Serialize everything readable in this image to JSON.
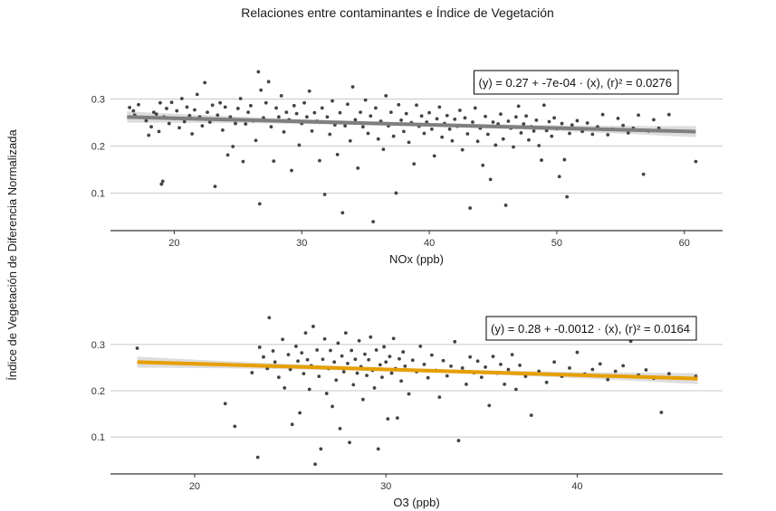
{
  "figure": {
    "title": "Relaciones entre contaminantes e Índice de Vegetación",
    "shared_ylabel": "Índice de Vegetación de Diferencia Normalizada"
  },
  "chart_data": [
    {
      "type": "scatter",
      "name": "nox-panel",
      "title": "",
      "xlabel": "NOx (ppb)",
      "ylabel": "Índice de Vegetación de Diferencia Normalizada",
      "xlim": [
        15,
        63
      ],
      "ylim": [
        0.02,
        0.38
      ],
      "x_ticks": [
        20,
        30,
        40,
        50,
        60
      ],
      "y_ticks": [
        0.1,
        0.2,
        0.3
      ],
      "x_tick_labels": [
        "20",
        "30",
        "40",
        "50",
        "60"
      ],
      "y_tick_labels": [
        "0.1",
        "0.2",
        "0.3"
      ],
      "grid": "horizontal",
      "equation": "(y) = 0.27 + -7e-04 · (x),  (r)² = 0.0276",
      "fit": {
        "intercept": 0.2733,
        "slope": -0.0007,
        "x_range": [
          16.3,
          60.9
        ],
        "color": "#7f7f7f",
        "band_color": "#d9d9d9"
      },
      "point_color": "#444444",
      "points": [
        [
          16.5,
          0.282
        ],
        [
          16.8,
          0.275
        ],
        [
          16.9,
          0.266
        ],
        [
          17.2,
          0.288
        ],
        [
          17.6,
          0.261
        ],
        [
          17.8,
          0.254
        ],
        [
          18.0,
          0.223
        ],
        [
          18.2,
          0.241
        ],
        [
          18.4,
          0.272
        ],
        [
          18.6,
          0.268
        ],
        [
          18.8,
          0.231
        ],
        [
          18.9,
          0.292
        ],
        [
          19.0,
          0.119
        ],
        [
          19.1,
          0.125
        ],
        [
          19.2,
          0.262
        ],
        [
          19.4,
          0.28
        ],
        [
          19.6,
          0.248
        ],
        [
          19.8,
          0.293
        ],
        [
          20.0,
          0.259
        ],
        [
          20.2,
          0.275
        ],
        [
          20.4,
          0.239
        ],
        [
          20.6,
          0.301
        ],
        [
          20.8,
          0.252
        ],
        [
          21.0,
          0.283
        ],
        [
          21.2,
          0.265
        ],
        [
          21.4,
          0.226
        ],
        [
          21.6,
          0.277
        ],
        [
          21.8,
          0.31
        ],
        [
          22.0,
          0.262
        ],
        [
          22.2,
          0.243
        ],
        [
          22.4,
          0.335
        ],
        [
          22.6,
          0.272
        ],
        [
          22.8,
          0.251
        ],
        [
          23.0,
          0.287
        ],
        [
          23.2,
          0.114
        ],
        [
          23.4,
          0.266
        ],
        [
          23.6,
          0.292
        ],
        [
          23.8,
          0.234
        ],
        [
          24.0,
          0.283
        ],
        [
          24.2,
          0.181
        ],
        [
          24.4,
          0.262
        ],
        [
          24.6,
          0.199
        ],
        [
          24.8,
          0.248
        ],
        [
          25.0,
          0.28
        ],
        [
          25.2,
          0.301
        ],
        [
          25.4,
          0.167
        ],
        [
          25.6,
          0.247
        ],
        [
          25.8,
          0.272
        ],
        [
          26.0,
          0.286
        ],
        [
          26.2,
          0.254
        ],
        [
          26.4,
          0.212
        ],
        [
          26.6,
          0.358
        ],
        [
          26.7,
          0.077
        ],
        [
          26.8,
          0.319
        ],
        [
          27.0,
          0.26
        ],
        [
          27.2,
          0.292
        ],
        [
          27.4,
          0.337
        ],
        [
          27.6,
          0.241
        ],
        [
          27.8,
          0.168
        ],
        [
          28.0,
          0.281
        ],
        [
          28.2,
          0.262
        ],
        [
          28.4,
          0.307
        ],
        [
          28.6,
          0.23
        ],
        [
          28.8,
          0.272
        ],
        [
          29.0,
          0.256
        ],
        [
          29.2,
          0.148
        ],
        [
          29.4,
          0.286
        ],
        [
          29.6,
          0.269
        ],
        [
          29.8,
          0.202
        ],
        [
          30.0,
          0.248
        ],
        [
          30.2,
          0.292
        ],
        [
          30.4,
          0.262
        ],
        [
          30.6,
          0.317
        ],
        [
          30.8,
          0.232
        ],
        [
          31.0,
          0.271
        ],
        [
          31.2,
          0.253
        ],
        [
          31.4,
          0.169
        ],
        [
          31.6,
          0.281
        ],
        [
          31.8,
          0.097
        ],
        [
          32.0,
          0.262
        ],
        [
          32.2,
          0.225
        ],
        [
          32.4,
          0.296
        ],
        [
          32.6,
          0.245
        ],
        [
          32.8,
          0.182
        ],
        [
          33.0,
          0.271
        ],
        [
          33.2,
          0.058
        ],
        [
          33.4,
          0.243
        ],
        [
          33.6,
          0.289
        ],
        [
          33.8,
          0.211
        ],
        [
          34.0,
          0.326
        ],
        [
          34.2,
          0.256
        ],
        [
          34.4,
          0.153
        ],
        [
          34.6,
          0.272
        ],
        [
          34.8,
          0.241
        ],
        [
          35.0,
          0.298
        ],
        [
          35.2,
          0.227
        ],
        [
          35.4,
          0.264
        ],
        [
          35.6,
          0.039
        ],
        [
          35.8,
          0.281
        ],
        [
          36.0,
          0.215
        ],
        [
          36.2,
          0.253
        ],
        [
          36.4,
          0.193
        ],
        [
          36.6,
          0.307
        ],
        [
          36.8,
          0.243
        ],
        [
          37.0,
          0.272
        ],
        [
          37.2,
          0.221
        ],
        [
          37.4,
          0.1
        ],
        [
          37.6,
          0.288
        ],
        [
          37.8,
          0.255
        ],
        [
          38.0,
          0.231
        ],
        [
          38.2,
          0.269
        ],
        [
          38.4,
          0.208
        ],
        [
          38.6,
          0.25
        ],
        [
          38.8,
          0.162
        ],
        [
          39.0,
          0.287
        ],
        [
          39.2,
          0.242
        ],
        [
          39.4,
          0.264
        ],
        [
          39.6,
          0.227
        ],
        [
          39.8,
          0.251
        ],
        [
          40.0,
          0.271
        ],
        [
          40.2,
          0.236
        ],
        [
          40.4,
          0.179
        ],
        [
          40.6,
          0.258
        ],
        [
          40.8,
          0.283
        ],
        [
          41.0,
          0.219
        ],
        [
          41.2,
          0.248
        ],
        [
          41.4,
          0.265
        ],
        [
          41.6,
          0.236
        ],
        [
          41.8,
          0.211
        ],
        [
          42.0,
          0.257
        ],
        [
          42.2,
          0.242
        ],
        [
          42.4,
          0.276
        ],
        [
          42.6,
          0.192
        ],
        [
          42.8,
          0.26
        ],
        [
          43.0,
          0.226
        ],
        [
          43.2,
          0.068
        ],
        [
          43.4,
          0.251
        ],
        [
          43.6,
          0.281
        ],
        [
          43.8,
          0.21
        ],
        [
          44.0,
          0.238
        ],
        [
          44.2,
          0.159
        ],
        [
          44.4,
          0.263
        ],
        [
          44.6,
          0.225
        ],
        [
          44.8,
          0.129
        ],
        [
          45.0,
          0.251
        ],
        [
          45.2,
          0.202
        ],
        [
          45.4,
          0.247
        ],
        [
          45.6,
          0.268
        ],
        [
          45.8,
          0.215
        ],
        [
          46.0,
          0.074
        ],
        [
          46.2,
          0.253
        ],
        [
          46.4,
          0.238
        ],
        [
          46.6,
          0.198
        ],
        [
          46.8,
          0.262
        ],
        [
          47.0,
          0.285
        ],
        [
          47.2,
          0.228
        ],
        [
          47.4,
          0.247
        ],
        [
          47.6,
          0.264
        ],
        [
          47.8,
          0.213
        ],
        [
          48.0,
          0.241
        ],
        [
          48.2,
          0.232
        ],
        [
          48.4,
          0.255
        ],
        [
          48.6,
          0.201
        ],
        [
          48.8,
          0.17
        ],
        [
          49.0,
          0.287
        ],
        [
          49.2,
          0.233
        ],
        [
          49.4,
          0.252
        ],
        [
          49.6,
          0.221
        ],
        [
          49.8,
          0.26
        ],
        [
          50.0,
          0.237
        ],
        [
          50.2,
          0.135
        ],
        [
          50.4,
          0.248
        ],
        [
          50.6,
          0.171
        ],
        [
          50.8,
          0.092
        ],
        [
          51.0,
          0.227
        ],
        [
          51.2,
          0.245
        ],
        [
          51.6,
          0.254
        ],
        [
          52.0,
          0.231
        ],
        [
          52.4,
          0.249
        ],
        [
          52.8,
          0.225
        ],
        [
          53.2,
          0.241
        ],
        [
          53.6,
          0.267
        ],
        [
          54.0,
          0.224
        ],
        [
          54.4,
          0.236
        ],
        [
          54.8,
          0.259
        ],
        [
          55.2,
          0.244
        ],
        [
          55.6,
          0.228
        ],
        [
          56.0,
          0.238
        ],
        [
          56.4,
          0.266
        ],
        [
          56.8,
          0.14
        ],
        [
          57.2,
          0.232
        ],
        [
          57.6,
          0.256
        ],
        [
          58.0,
          0.238
        ],
        [
          58.8,
          0.267
        ],
        [
          60.9,
          0.167
        ]
      ]
    },
    {
      "type": "scatter",
      "name": "o3-panel",
      "title": "",
      "xlabel": "O3 (ppb)",
      "ylabel": "Índice de Vegetación de Diferencia Normalizada",
      "xlim": [
        15.6,
        47.6
      ],
      "ylim": [
        0.02,
        0.38
      ],
      "x_ticks": [
        20,
        30,
        40
      ],
      "y_ticks": [
        0.1,
        0.2,
        0.3
      ],
      "x_tick_labels": [
        "20",
        "30",
        "40"
      ],
      "y_tick_labels": [
        "0.1",
        "0.2",
        "0.3"
      ],
      "grid": "horizontal",
      "equation": "(y) = 0.28 + -0.0012 · (x),  (r)² = 0.0164",
      "fit": {
        "intercept": 0.2826,
        "slope": -0.00122,
        "x_range": [
          17.0,
          46.3
        ],
        "color": "#e69f00",
        "band_color": "#d9d9d9"
      },
      "point_color": "#444444",
      "points": [
        [
          17.0,
          0.292
        ],
        [
          21.6,
          0.172
        ],
        [
          22.1,
          0.123
        ],
        [
          23.0,
          0.239
        ],
        [
          23.3,
          0.056
        ],
        [
          23.4,
          0.294
        ],
        [
          23.6,
          0.273
        ],
        [
          23.8,
          0.248
        ],
        [
          23.9,
          0.358
        ],
        [
          24.1,
          0.286
        ],
        [
          24.2,
          0.262
        ],
        [
          24.4,
          0.229
        ],
        [
          24.6,
          0.311
        ],
        [
          24.7,
          0.206
        ],
        [
          24.9,
          0.278
        ],
        [
          25.0,
          0.246
        ],
        [
          25.1,
          0.127
        ],
        [
          25.3,
          0.296
        ],
        [
          25.4,
          0.264
        ],
        [
          25.5,
          0.152
        ],
        [
          25.6,
          0.282
        ],
        [
          25.7,
          0.237
        ],
        [
          25.8,
          0.325
        ],
        [
          25.9,
          0.267
        ],
        [
          26.0,
          0.203
        ],
        [
          26.1,
          0.254
        ],
        [
          26.2,
          0.339
        ],
        [
          26.3,
          0.041
        ],
        [
          26.4,
          0.288
        ],
        [
          26.5,
          0.231
        ],
        [
          26.6,
          0.074
        ],
        [
          26.7,
          0.268
        ],
        [
          26.8,
          0.312
        ],
        [
          26.9,
          0.194
        ],
        [
          27.0,
          0.248
        ],
        [
          27.1,
          0.287
        ],
        [
          27.2,
          0.166
        ],
        [
          27.3,
          0.262
        ],
        [
          27.4,
          0.223
        ],
        [
          27.5,
          0.303
        ],
        [
          27.6,
          0.118
        ],
        [
          27.7,
          0.275
        ],
        [
          27.8,
          0.241
        ],
        [
          27.9,
          0.325
        ],
        [
          28.0,
          0.259
        ],
        [
          28.1,
          0.088
        ],
        [
          28.2,
          0.287
        ],
        [
          28.3,
          0.213
        ],
        [
          28.4,
          0.268
        ],
        [
          28.5,
          0.238
        ],
        [
          28.6,
          0.308
        ],
        [
          28.7,
          0.252
        ],
        [
          28.8,
          0.181
        ],
        [
          28.9,
          0.279
        ],
        [
          29.0,
          0.233
        ],
        [
          29.1,
          0.267
        ],
        [
          29.2,
          0.316
        ],
        [
          29.3,
          0.244
        ],
        [
          29.4,
          0.206
        ],
        [
          29.5,
          0.288
        ],
        [
          29.6,
          0.074
        ],
        [
          29.7,
          0.256
        ],
        [
          29.8,
          0.229
        ],
        [
          29.9,
          0.295
        ],
        [
          30.0,
          0.262
        ],
        [
          30.1,
          0.139
        ],
        [
          30.2,
          0.274
        ],
        [
          30.3,
          0.238
        ],
        [
          30.4,
          0.313
        ],
        [
          30.5,
          0.248
        ],
        [
          30.6,
          0.141
        ],
        [
          30.7,
          0.269
        ],
        [
          30.8,
          0.221
        ],
        [
          30.9,
          0.284
        ],
        [
          31.0,
          0.253
        ],
        [
          31.2,
          0.193
        ],
        [
          31.4,
          0.266
        ],
        [
          31.6,
          0.241
        ],
        [
          31.8,
          0.296
        ],
        [
          32.0,
          0.257
        ],
        [
          32.2,
          0.228
        ],
        [
          32.4,
          0.277
        ],
        [
          32.6,
          0.244
        ],
        [
          32.8,
          0.186
        ],
        [
          33.0,
          0.265
        ],
        [
          33.2,
          0.232
        ],
        [
          33.4,
          0.253
        ],
        [
          33.6,
          0.306
        ],
        [
          33.8,
          0.092
        ],
        [
          34.0,
          0.249
        ],
        [
          34.2,
          0.214
        ],
        [
          34.4,
          0.273
        ],
        [
          34.6,
          0.239
        ],
        [
          34.8,
          0.264
        ],
        [
          35.0,
          0.229
        ],
        [
          35.2,
          0.251
        ],
        [
          35.4,
          0.168
        ],
        [
          35.6,
          0.274
        ],
        [
          35.8,
          0.238
        ],
        [
          36.0,
          0.257
        ],
        [
          36.2,
          0.214
        ],
        [
          36.4,
          0.246
        ],
        [
          36.6,
          0.278
        ],
        [
          36.8,
          0.203
        ],
        [
          37.0,
          0.255
        ],
        [
          37.3,
          0.231
        ],
        [
          37.6,
          0.147
        ],
        [
          38.0,
          0.242
        ],
        [
          38.4,
          0.218
        ],
        [
          38.8,
          0.262
        ],
        [
          39.2,
          0.231
        ],
        [
          39.6,
          0.249
        ],
        [
          40.0,
          0.283
        ],
        [
          40.4,
          0.236
        ],
        [
          40.8,
          0.246
        ],
        [
          41.2,
          0.258
        ],
        [
          41.6,
          0.224
        ],
        [
          42.0,
          0.242
        ],
        [
          42.4,
          0.254
        ],
        [
          42.8,
          0.307
        ],
        [
          43.2,
          0.234
        ],
        [
          43.6,
          0.245
        ],
        [
          44.0,
          0.227
        ],
        [
          44.4,
          0.153
        ],
        [
          44.8,
          0.237
        ],
        [
          46.2,
          0.231
        ]
      ]
    }
  ]
}
